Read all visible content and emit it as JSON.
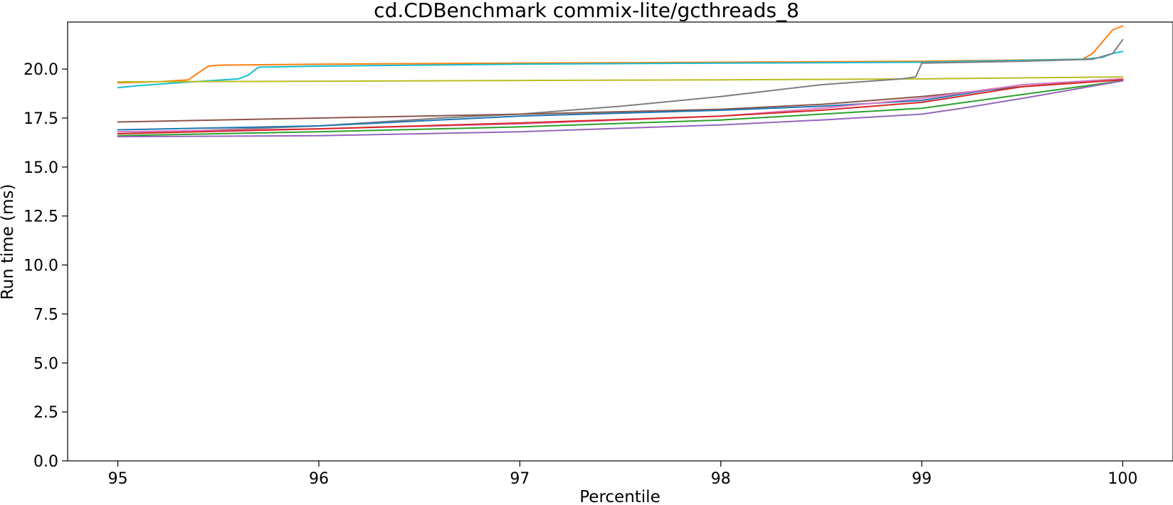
{
  "chart_data": {
    "type": "line",
    "title": "cd.CDBenchmark commix-lite/gcthreads_8",
    "xlabel": "Percentile",
    "ylabel": "Run time (ms)",
    "xlim": [
      94.75,
      100.25
    ],
    "ylim": [
      0,
      22.4
    ],
    "xticks": [
      95,
      96,
      97,
      98,
      99,
      100
    ],
    "xtick_labels": [
      "95",
      "96",
      "97",
      "98",
      "99",
      "100"
    ],
    "yticks": [
      0,
      2.5,
      5,
      7.5,
      10,
      12.5,
      15,
      17.5,
      20
    ],
    "ytick_labels": [
      "0.0",
      "2.5",
      "5.0",
      "7.5",
      "10.0",
      "12.5",
      "15.0",
      "17.5",
      "20.0"
    ],
    "grid": false,
    "series": [
      {
        "color": "#ff7f0e",
        "x": [
          95,
          95.2,
          95.35,
          95.4,
          95.45,
          95.5,
          96,
          97,
          98,
          99,
          99.8,
          99.85,
          99.9,
          99.95,
          100
        ],
        "y": [
          19.3,
          19.35,
          19.45,
          19.8,
          20.15,
          20.2,
          20.25,
          20.3,
          20.35,
          20.4,
          20.5,
          20.8,
          21.4,
          22.0,
          22.2
        ]
      },
      {
        "color": "#17becf",
        "x": [
          95,
          95.1,
          95.3,
          95.6,
          95.65,
          95.7,
          96,
          97,
          98,
          99,
          99.8,
          99.9,
          99.95,
          100
        ],
        "y": [
          19.05,
          19.15,
          19.3,
          19.5,
          19.7,
          20.1,
          20.15,
          20.25,
          20.3,
          20.35,
          20.5,
          20.6,
          20.8,
          20.9
        ]
      },
      {
        "color": "#bcbd22",
        "x": [
          95,
          96,
          97,
          98,
          99,
          100
        ],
        "y": [
          19.35,
          19.38,
          19.42,
          19.45,
          19.5,
          19.6
        ]
      },
      {
        "color": "#7f7f7f",
        "x": [
          95,
          96,
          96.6,
          97,
          97.5,
          98,
          98.5,
          98.9,
          98.97,
          99,
          99.5,
          99.85,
          99.95,
          100
        ],
        "y": [
          16.7,
          17.1,
          17.5,
          17.7,
          18.1,
          18.6,
          19.2,
          19.5,
          19.6,
          20.3,
          20.4,
          20.5,
          20.8,
          21.5
        ]
      },
      {
        "color": "#8c564b",
        "x": [
          95,
          96,
          97,
          98,
          98.5,
          99,
          99.5,
          100
        ],
        "y": [
          17.3,
          17.5,
          17.7,
          17.95,
          18.2,
          18.6,
          19.1,
          19.5
        ]
      },
      {
        "color": "#1f77b4",
        "x": [
          95,
          96,
          97,
          98,
          98.5,
          99,
          99.5,
          100
        ],
        "y": [
          16.9,
          17.1,
          17.6,
          17.9,
          18.1,
          18.4,
          19.2,
          19.5
        ]
      },
      {
        "color": "#e377c2",
        "x": [
          95,
          96,
          97,
          98,
          98.5,
          99,
          99.5,
          100
        ],
        "y": [
          16.8,
          16.95,
          17.2,
          17.6,
          18.0,
          18.5,
          19.2,
          19.5
        ]
      },
      {
        "color": "#d62728",
        "x": [
          95,
          96,
          97,
          98,
          98.5,
          99,
          99.5,
          100
        ],
        "y": [
          16.7,
          16.95,
          17.25,
          17.6,
          17.9,
          18.3,
          19.1,
          19.45
        ]
      },
      {
        "color": "#2ca02c",
        "x": [
          95,
          96,
          97,
          98,
          98.5,
          99,
          99.5,
          100
        ],
        "y": [
          16.6,
          16.8,
          17.05,
          17.4,
          17.7,
          18.0,
          18.7,
          19.4
        ]
      },
      {
        "color": "#9467bd",
        "x": [
          95,
          96,
          97,
          98,
          98.5,
          99,
          99.2,
          99.5,
          100
        ],
        "y": [
          16.55,
          16.6,
          16.8,
          17.15,
          17.4,
          17.7,
          18.0,
          18.5,
          19.4
        ]
      }
    ]
  }
}
